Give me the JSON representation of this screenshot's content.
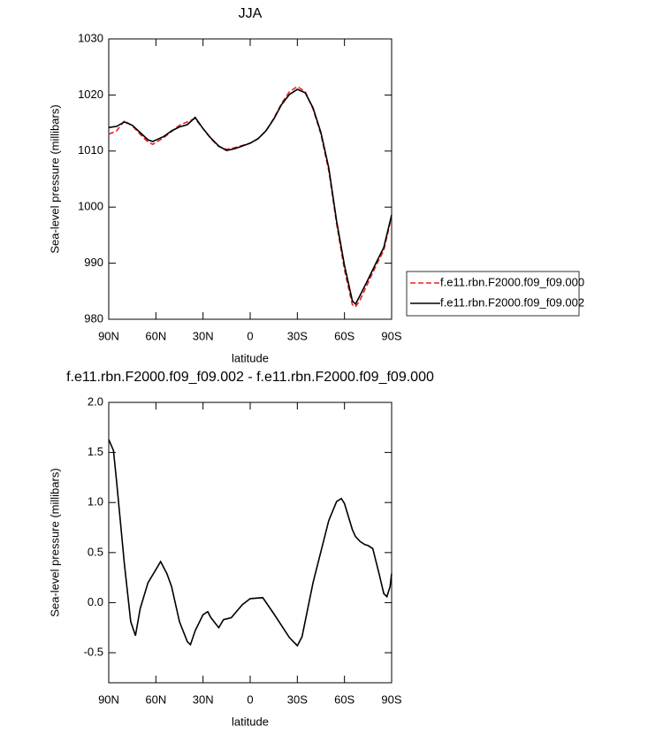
{
  "chart_data": [
    {
      "type": "line",
      "title": "JJA",
      "x_label": "latitude",
      "y_label": "Sea-level pressure (millibars)",
      "xlim": [
        90,
        -90
      ],
      "xticks": [
        {
          "value": 90,
          "label": "90N"
        },
        {
          "value": 60,
          "label": "60N"
        },
        {
          "value": 30,
          "label": "30N"
        },
        0,
        {
          "value": -30,
          "label": "30S"
        },
        {
          "value": -60,
          "label": "60S"
        },
        {
          "value": -90,
          "label": "90S"
        }
      ],
      "ylim": [
        980,
        1030
      ],
      "yticks": [
        980,
        990,
        1000,
        1010,
        1020,
        1030
      ],
      "legend": "right",
      "x": [
        90,
        85,
        80,
        75,
        70,
        65,
        62,
        55,
        50,
        45,
        40,
        35,
        30,
        25,
        20,
        15,
        10,
        5,
        0,
        -5,
        -10,
        -15,
        -20,
        -25,
        -30,
        -35,
        -40,
        -45,
        -50,
        -55,
        -60,
        -65,
        -67,
        -70,
        -75,
        -80,
        -85,
        -90
      ],
      "series": [
        {
          "name": "f.e11.rbn.F2000.f09_f09.000",
          "color": "#e8211f",
          "line_style": "dashed",
          "values": [
            1013.0,
            1013.6,
            1015.4,
            1014.5,
            1013.0,
            1011.6,
            1011.2,
            1012.4,
            1013.5,
            1014.6,
            1015.2,
            1015.8,
            1014.0,
            1012.2,
            1010.8,
            1010.3,
            1010.6,
            1011.0,
            1011.4,
            1012.2,
            1013.6,
            1015.8,
            1018.5,
            1020.6,
            1021.5,
            1020.6,
            1017.5,
            1013.0,
            1006.5,
            997.0,
            988.8,
            982.6,
            982.2,
            983.5,
            986.5,
            989.5,
            992.3,
            998.4
          ]
        },
        {
          "name": "f.e11.rbn.F2000.f09_f09.002",
          "color": "#000000",
          "line_style": "solid",
          "values": [
            1014.2,
            1014.4,
            1015.2,
            1014.6,
            1013.3,
            1012.0,
            1011.7,
            1012.6,
            1013.6,
            1014.3,
            1014.7,
            1016.0,
            1014.0,
            1012.3,
            1010.9,
            1010.1,
            1010.4,
            1010.9,
            1011.4,
            1012.2,
            1013.6,
            1015.7,
            1018.3,
            1020.1,
            1021.0,
            1020.4,
            1017.7,
            1013.3,
            1007.0,
            997.5,
            989.6,
            983.3,
            982.7,
            984.3,
            987.1,
            990.0,
            992.8,
            998.6
          ]
        }
      ]
    },
    {
      "type": "line",
      "title": "f.e11.rbn.F2000.f09_f09.002 - f.e11.rbn.F2000.f09_f09.000",
      "x_label": "latitude",
      "y_label": "Sea-level pressure (millibars)",
      "xlim": [
        90,
        -90
      ],
      "xticks": [
        {
          "value": 90,
          "label": "90N"
        },
        {
          "value": 60,
          "label": "60N"
        },
        {
          "value": 30,
          "label": "30N"
        },
        0,
        {
          "value": -30,
          "label": "30S"
        },
        {
          "value": -60,
          "label": "60S"
        },
        {
          "value": -90,
          "label": "90S"
        }
      ],
      "ylim": [
        -0.8,
        2.0
      ],
      "yticks": [
        {
          "value": -0.5,
          "label": "-0.5"
        },
        {
          "value": 0,
          "label": "0.0"
        },
        {
          "value": 0.5,
          "label": "0.5"
        },
        {
          "value": 1,
          "label": "1.0"
        },
        {
          "value": 1.5,
          "label": "1.5"
        },
        {
          "value": 2,
          "label": "2.0"
        }
      ],
      "x": [
        90,
        87,
        85,
        80,
        76,
        73,
        70,
        65,
        60,
        57,
        53,
        50,
        45,
        40,
        38,
        35,
        30,
        27,
        25,
        20,
        17,
        12,
        5,
        0,
        -8,
        -15,
        -25,
        -30,
        -33,
        -40,
        -50,
        -55,
        -58,
        -60,
        -65,
        -67,
        -70,
        -73,
        -75,
        -78,
        -82,
        -85,
        -87,
        -89,
        -90
      ],
      "color": "#000000",
      "values": [
        1.63,
        1.52,
        1.21,
        0.38,
        -0.19,
        -0.33,
        -0.06,
        0.2,
        0.33,
        0.41,
        0.29,
        0.16,
        -0.19,
        -0.39,
        -0.42,
        -0.28,
        -0.12,
        -0.09,
        -0.15,
        -0.25,
        -0.17,
        -0.15,
        -0.02,
        0.04,
        0.05,
        -0.11,
        -0.35,
        -0.43,
        -0.34,
        0.2,
        0.82,
        1.01,
        1.04,
        0.99,
        0.73,
        0.66,
        0.61,
        0.58,
        0.57,
        0.54,
        0.29,
        0.09,
        0.06,
        0.16,
        0.29
      ]
    }
  ]
}
